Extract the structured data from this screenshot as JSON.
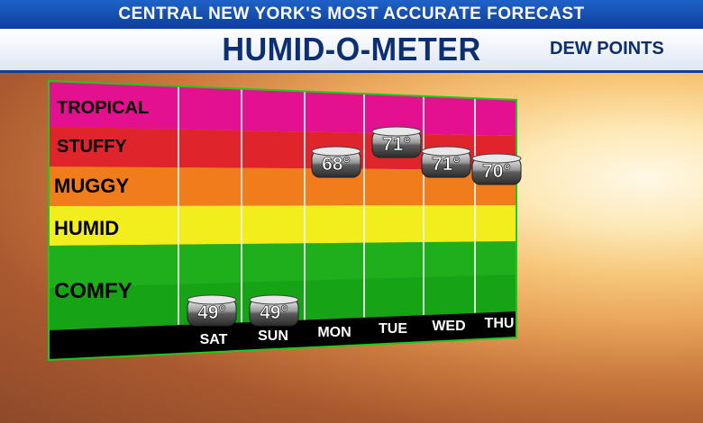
{
  "header": {
    "tagline": "CENTRAL NEW YORK'S MOST ACCURATE FORECAST",
    "title": "HUMID-O-METER",
    "subtitle": "DEW POINTS"
  },
  "colors": {
    "tropical": "#e3118f",
    "stuffy": "#e0242c",
    "muggy": "#f07c1c",
    "humid": "#f2ee1e",
    "comfy": "#1fae1c",
    "frame": "#20c81e",
    "day_bar": "#000000"
  },
  "chart_data": {
    "type": "scatter",
    "title": "HUMID-O-METER",
    "subtitle": "DEW POINTS",
    "bands": [
      {
        "label": "TROPICAL"
      },
      {
        "label": "STUFFY"
      },
      {
        "label": "MUGGY"
      },
      {
        "label": "HUMID"
      },
      {
        "label": "COMFY"
      }
    ],
    "categories": [
      "SAT",
      "SUN",
      "MON",
      "TUE",
      "WED",
      "THU"
    ],
    "values": [
      49,
      49,
      68,
      71,
      71,
      70
    ],
    "value_labels": [
      "49°",
      "49°",
      "68°",
      "71°",
      "71°",
      "70°"
    ],
    "legend": "none",
    "grid": true
  }
}
